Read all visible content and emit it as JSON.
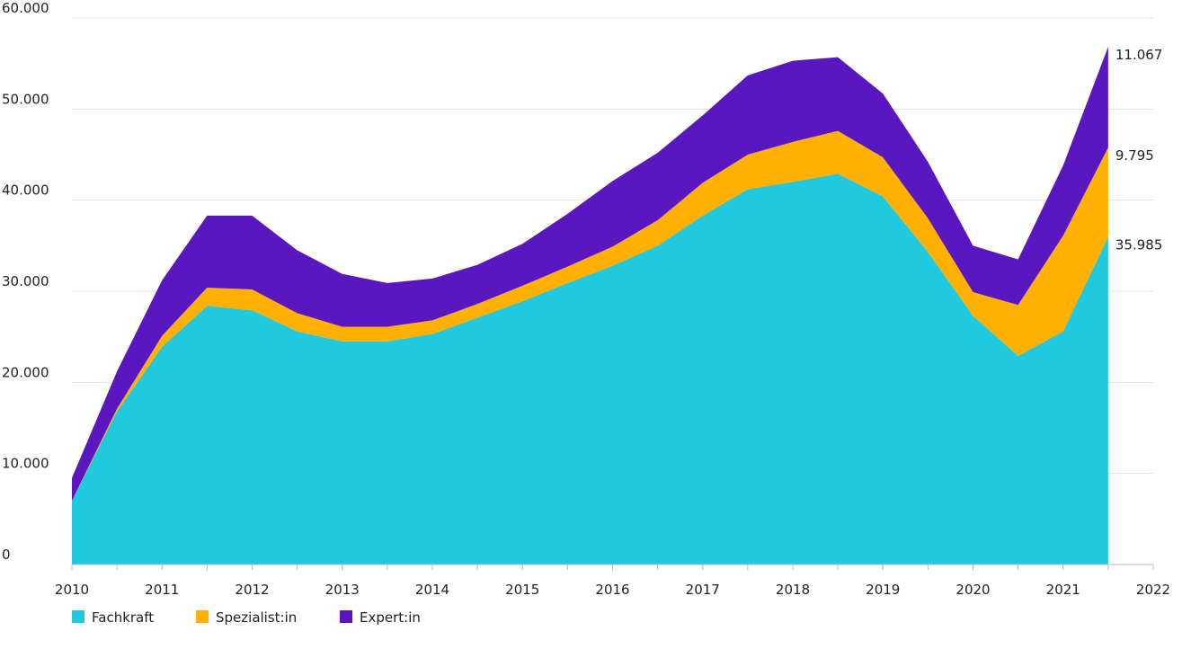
{
  "chart_data": {
    "type": "stacked_area",
    "x": [
      2010,
      2010.5,
      2011,
      2011.5,
      2012,
      2012.5,
      2013,
      2013.5,
      2014,
      2014.5,
      2015,
      2015.5,
      2016,
      2016.5,
      2017,
      2017.5,
      2018,
      2018.5,
      2019,
      2019.5,
      2020,
      2020.5,
      2021,
      2021.5
    ],
    "series": [
      {
        "name": "Fachkraft",
        "color": "#20c9dd",
        "values": [
          7000,
          16800,
          23900,
          28400,
          27900,
          25600,
          24500,
          24500,
          25300,
          27100,
          28900,
          30900,
          32800,
          35000,
          38300,
          41200,
          42000,
          42900,
          40400,
          34300,
          27300,
          22900,
          25600,
          35985
        ],
        "value_labels": [
          null,
          null,
          null,
          null,
          null,
          null,
          null,
          null,
          null,
          null,
          null,
          null,
          null,
          null,
          null,
          null,
          null,
          null,
          null,
          null,
          null,
          null,
          null,
          "35.985"
        ]
      },
      {
        "name": "Spezialist:in",
        "color": "#ffb000",
        "values": [
          0,
          300,
          1200,
          2000,
          2300,
          2000,
          1600,
          1600,
          1500,
          1500,
          1700,
          1800,
          2100,
          2800,
          3600,
          3800,
          4400,
          4700,
          4300,
          3700,
          2600,
          5600,
          10500,
          9795
        ],
        "value_labels": [
          null,
          null,
          null,
          null,
          null,
          null,
          null,
          null,
          null,
          null,
          null,
          null,
          null,
          null,
          null,
          null,
          null,
          null,
          null,
          null,
          null,
          null,
          null,
          "9.795"
        ]
      },
      {
        "name": "Expert:in",
        "color": "#5a17bf",
        "values": [
          2500,
          4100,
          6100,
          7900,
          8100,
          6900,
          5800,
          4800,
          4600,
          4300,
          4600,
          5800,
          7200,
          7400,
          7400,
          8700,
          8900,
          8100,
          7000,
          6200,
          5100,
          5000,
          7700,
          11067
        ],
        "value_labels": [
          null,
          null,
          null,
          null,
          null,
          null,
          null,
          null,
          null,
          null,
          null,
          null,
          null,
          null,
          null,
          null,
          null,
          null,
          null,
          null,
          null,
          null,
          null,
          "11.067"
        ]
      }
    ],
    "xlim": [
      2010,
      2022
    ],
    "xticks": [
      2010,
      2011,
      2012,
      2013,
      2014,
      2015,
      2016,
      2017,
      2018,
      2019,
      2020,
      2021,
      2022
    ],
    "ylim": [
      0,
      60000
    ],
    "yticks": [
      0,
      {
        "value": 10000,
        "label": "10.000"
      },
      {
        "value": 20000,
        "label": "20.000"
      },
      {
        "value": 30000,
        "label": "30.000"
      },
      {
        "value": 40000,
        "label": "40.000"
      },
      {
        "value": 50000,
        "label": "50.000"
      },
      {
        "value": 60000,
        "label": "60.000"
      }
    ],
    "grid": true,
    "legend": "bottom-left"
  }
}
